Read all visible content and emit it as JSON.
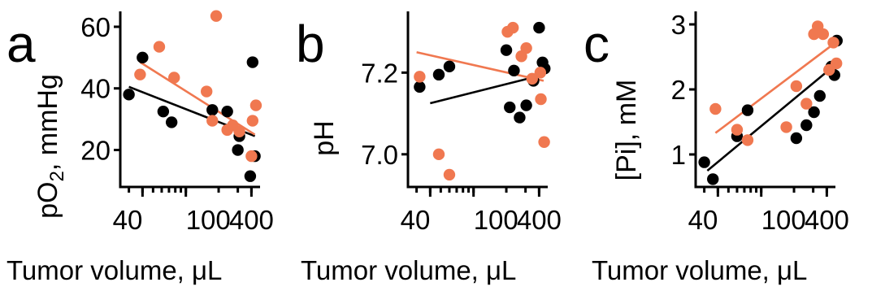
{
  "chart_data": [
    {
      "type": "scatter",
      "panel_letter": "a",
      "ylabel": "pO",
      "ylabel_sub": "2",
      "ylabel_rest": ", mmHg",
      "xlabel": "Tumor volume, μL",
      "xscale": "log",
      "xlim": [
        25,
        480
      ],
      "ylim": [
        8,
        65
      ],
      "xticks": [
        40,
        100,
        400
      ],
      "xtick_labels": [
        "40",
        "100",
        "400"
      ],
      "yticks": [
        20,
        40,
        60
      ],
      "ytick_labels": [
        "20",
        "40",
        "60"
      ],
      "series": [
        {
          "color": "#000000",
          "points": [
            [
              30,
              38
            ],
            [
              40,
              50
            ],
            [
              62,
              32.5
            ],
            [
              74,
              29
            ],
            [
              175,
              33
            ],
            [
              240,
              32.5
            ],
            [
              300,
              20
            ],
            [
              310,
              24.5
            ],
            [
              390,
              11.5
            ],
            [
              410,
              48.5
            ],
            [
              430,
              18
            ]
          ],
          "fit": [
            [
              30,
              40.5
            ],
            [
              430,
              24.5
            ]
          ]
        },
        {
          "color": "#F07850",
          "points": [
            [
              38,
              44.5
            ],
            [
              57,
              53.5
            ],
            [
              78,
              43.5
            ],
            [
              155,
              39
            ],
            [
              175,
              29.5
            ],
            [
              190,
              63.5
            ],
            [
              240,
              26.5
            ],
            [
              270,
              28
            ],
            [
              310,
              26
            ],
            [
              400,
              18
            ],
            [
              410,
              29.5
            ],
            [
              440,
              34.5
            ]
          ],
          "fit": [
            [
              38,
              48.5
            ],
            [
              430,
              25
            ]
          ]
        }
      ]
    },
    {
      "type": "scatter",
      "panel_letter": "b",
      "ylabel": "pH",
      "xlabel": "Tumor volume, μL",
      "xscale": "log",
      "xlim": [
        25,
        480
      ],
      "ylim": [
        6.92,
        7.35
      ],
      "xticks": [
        40,
        100,
        400
      ],
      "xtick_labels": [
        "40",
        "100",
        "400"
      ],
      "yticks": [
        7.0,
        7.2
      ],
      "ytick_labels": [
        "7.0",
        "7.2"
      ],
      "series": [
        {
          "color": "#000000",
          "points": [
            [
              32,
              7.165
            ],
            [
              48,
              7.195
            ],
            [
              60,
              7.215
            ],
            [
              200,
              7.255
            ],
            [
              215,
              7.115
            ],
            [
              235,
              7.205
            ],
            [
              265,
              7.09
            ],
            [
              305,
              7.12
            ],
            [
              355,
              7.18
            ],
            [
              400,
              7.31
            ],
            [
              430,
              7.225
            ],
            [
              450,
              7.21
            ]
          ],
          "fit": [
            [
              40,
              7.125
            ],
            [
              440,
              7.195
            ]
          ]
        },
        {
          "color": "#F07850",
          "points": [
            [
              32,
              7.19
            ],
            [
              48,
              7.0
            ],
            [
              60,
              6.95
            ],
            [
              205,
              7.3
            ],
            [
              230,
              7.31
            ],
            [
              275,
              7.24
            ],
            [
              305,
              7.26
            ],
            [
              345,
              7.185
            ],
            [
              410,
              7.2
            ],
            [
              415,
              7.135
            ],
            [
              445,
              7.03
            ]
          ],
          "fit": [
            [
              30,
              7.25
            ],
            [
              440,
              7.18
            ]
          ]
        }
      ]
    },
    {
      "type": "scatter",
      "panel_letter": "c",
      "ylabel": "[Pi], mM",
      "xlabel": "Tumor volume, μL",
      "xscale": "log",
      "xlim": [
        25,
        480
      ],
      "ylim": [
        0.5,
        3.2
      ],
      "xticks": [
        40,
        100,
        400
      ],
      "xtick_labels": [
        "40",
        "100",
        "400"
      ],
      "yticks": [
        1,
        2,
        3
      ],
      "ytick_labels": [
        "1",
        "2",
        "3"
      ],
      "series": [
        {
          "color": "#000000",
          "points": [
            [
              30,
              0.88
            ],
            [
              36,
              0.62
            ],
            [
              60,
              1.28
            ],
            [
              75,
              1.68
            ],
            [
              210,
              1.25
            ],
            [
              260,
              1.45
            ],
            [
              305,
              1.65
            ],
            [
              345,
              1.9
            ],
            [
              440,
              2.35
            ],
            [
              470,
              2.22
            ],
            [
              495,
              2.75
            ]
          ],
          "fit": [
            [
              32,
              0.75
            ],
            [
              480,
              2.38
            ]
          ]
        },
        {
          "color": "#F07850",
          "points": [
            [
              38,
              1.7
            ],
            [
              60,
              1.38
            ],
            [
              75,
              1.22
            ],
            [
              170,
              1.42
            ],
            [
              210,
              2.05
            ],
            [
              260,
              1.78
            ],
            [
              305,
              2.85
            ],
            [
              330,
              2.97
            ],
            [
              370,
              2.85
            ],
            [
              420,
              2.3
            ],
            [
              460,
              2.72
            ],
            [
              490,
              2.4
            ]
          ],
          "fit": [
            [
              38,
              1.33
            ],
            [
              480,
              2.72
            ]
          ]
        }
      ]
    }
  ]
}
